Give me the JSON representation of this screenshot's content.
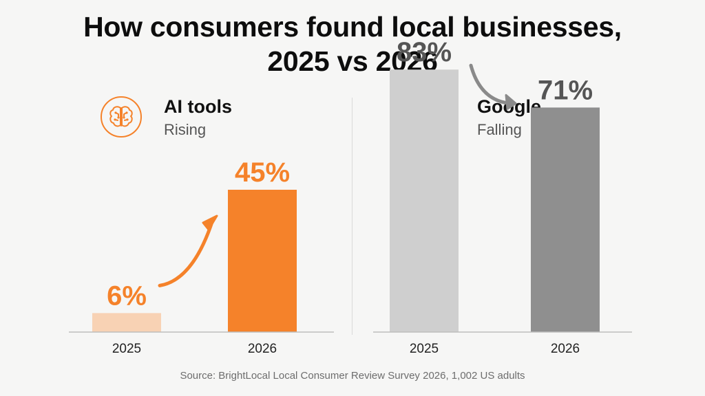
{
  "title_line1": "How consumers found local businesses,",
  "title_line2": "2025 vs 2026",
  "panels": [
    {
      "title": "AI tools",
      "subtitle": "Rising",
      "icon": "brain-icon",
      "accent": "#f5822a"
    },
    {
      "title": "Google",
      "subtitle": "Falling",
      "icon": "google-g-icon",
      "accent": "#8c8c8c"
    }
  ],
  "source": "Source: BrightLocal Local Consumer Review Survey 2026, 1,002 US adults",
  "chart_data": [
    {
      "type": "bar",
      "categories": [
        "2025",
        "2026"
      ],
      "values": [
        6,
        45
      ],
      "value_labels": [
        "6%",
        "45%"
      ],
      "colors": [
        "#f8d2b4",
        "#f5822a"
      ],
      "label_color": "#f5822a",
      "trend": "rising",
      "ylim": [
        0,
        100
      ]
    },
    {
      "type": "bar",
      "categories": [
        "2025",
        "2026"
      ],
      "values": [
        83,
        71
      ],
      "value_labels": [
        "83%",
        "71%"
      ],
      "colors": [
        "#cfcfcf",
        "#8f8f8f"
      ],
      "label_color": "#555555",
      "trend": "falling",
      "ylim": [
        0,
        100
      ]
    }
  ]
}
